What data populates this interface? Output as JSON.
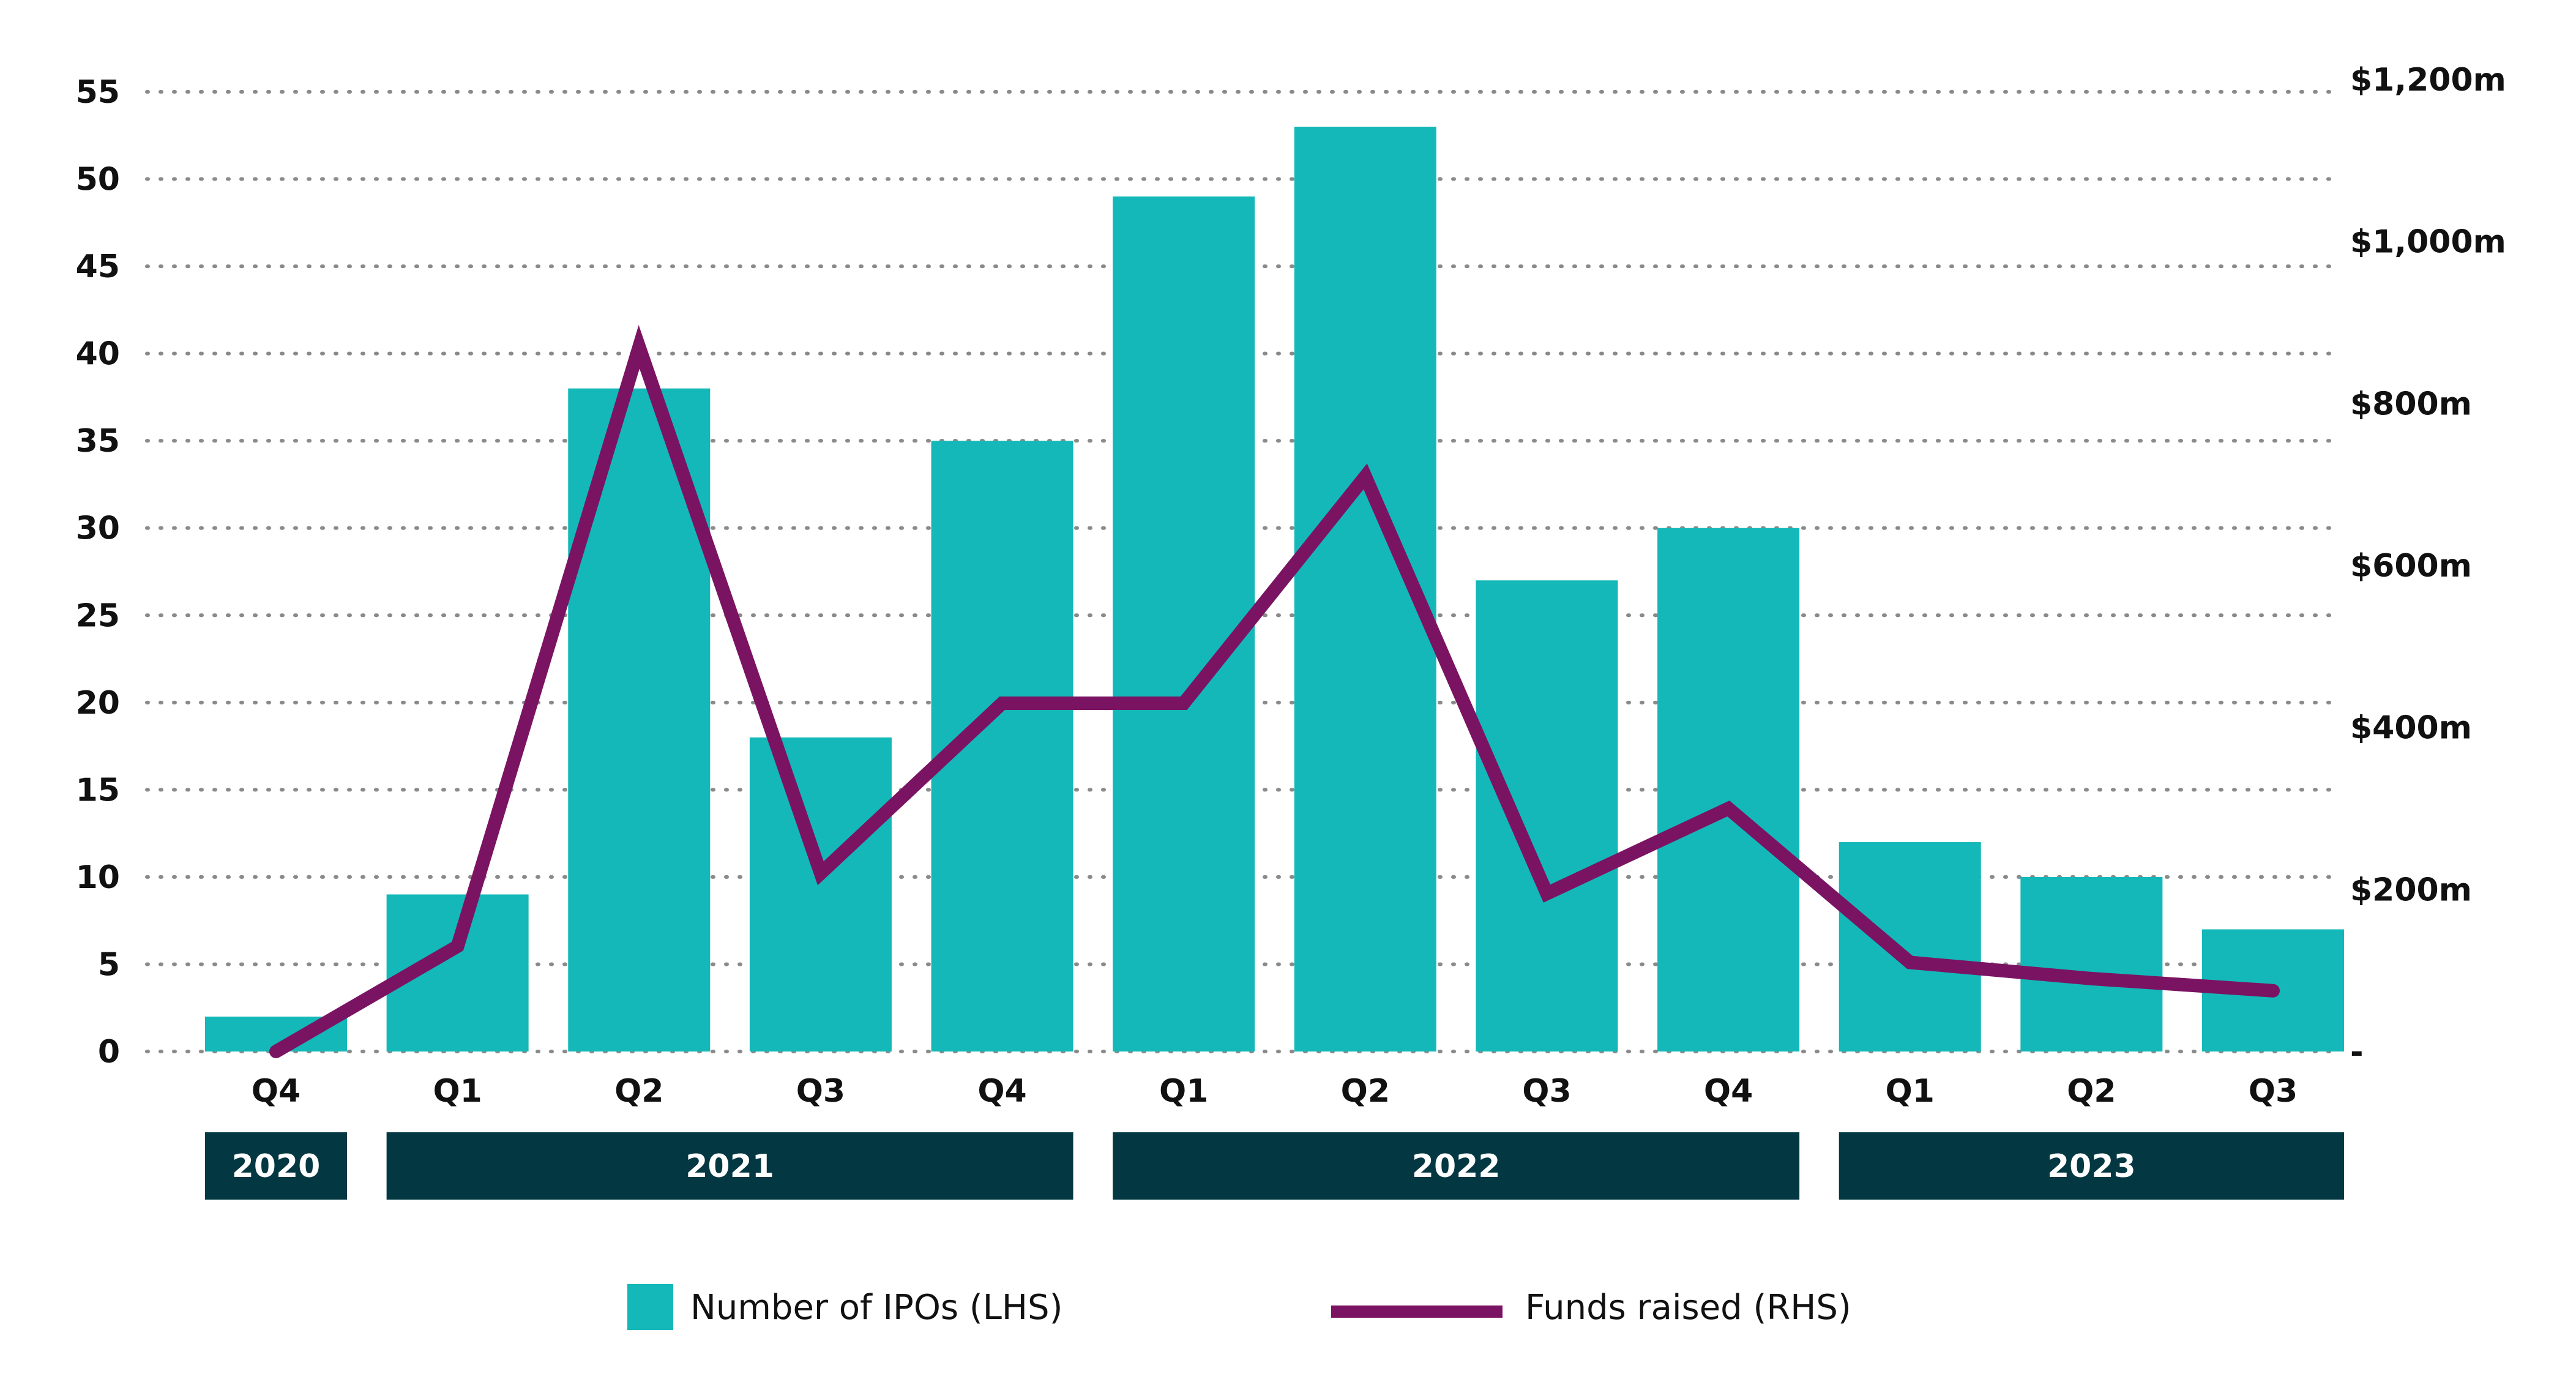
{
  "chart_data": {
    "type": "bar",
    "categories": [
      "Q4",
      "Q1",
      "Q2",
      "Q3",
      "Q4",
      "Q1",
      "Q2",
      "Q3",
      "Q4",
      "Q1",
      "Q2",
      "Q3"
    ],
    "year_groups": [
      {
        "label": "2020",
        "start": 0,
        "end": 0
      },
      {
        "label": "2021",
        "start": 1,
        "end": 4
      },
      {
        "label": "2022",
        "start": 5,
        "end": 8
      },
      {
        "label": "2023",
        "start": 9,
        "end": 11
      }
    ],
    "series": [
      {
        "name": "Number of IPOs (LHS)",
        "type": "bar",
        "axis": "left",
        "color": "#14b8b8",
        "values": [
          2,
          9,
          38,
          18,
          35,
          49,
          53,
          27,
          30,
          12,
          10,
          7
        ]
      },
      {
        "name": "Funds raised (RHS)",
        "type": "line",
        "axis": "right",
        "color": "#7b1363",
        "values": [
          0,
          130,
          870,
          220,
          430,
          430,
          710,
          195,
          300,
          110,
          90,
          75
        ]
      }
    ],
    "left_axis": {
      "ylim": [
        0,
        55
      ],
      "ticks": [
        0,
        5,
        10,
        15,
        20,
        25,
        30,
        35,
        40,
        45,
        50,
        55
      ],
      "tick_labels": [
        "0",
        "5",
        "10",
        "15",
        "20",
        "25",
        "30",
        "35",
        "40",
        "45",
        "50",
        "55"
      ]
    },
    "right_axis": {
      "ylim": [
        0,
        1200
      ],
      "ticks": [
        0,
        200,
        400,
        600,
        800,
        1000,
        1200
      ],
      "tick_labels": [
        "-",
        "$200m",
        "$400m",
        "$600m",
        "$800m",
        "$1,000m",
        "$1,200m"
      ]
    },
    "grid": true,
    "legend_position": "bottom",
    "year_band_color": "#033842"
  }
}
